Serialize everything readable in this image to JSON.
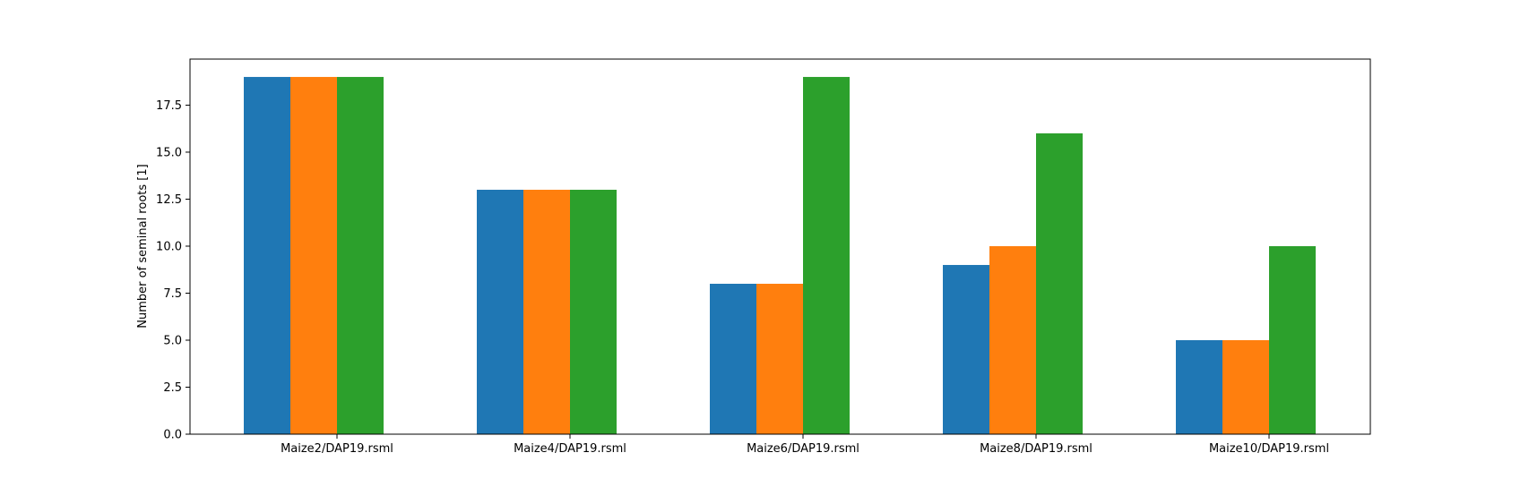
{
  "chart_data": {
    "type": "bar",
    "title": "",
    "xlabel": "",
    "ylabel": "Number of seminal roots [1]",
    "categories": [
      "Maize2/DAP19.rsml",
      "Maize4/DAP19.rsml",
      "Maize6/DAP19.rsml",
      "Maize8/DAP19.rsml",
      "Maize10/DAP19.rsml"
    ],
    "series": [
      {
        "values": [
          19,
          13,
          8,
          9,
          5
        ],
        "color": "#1f77b4"
      },
      {
        "values": [
          19,
          13,
          8,
          10,
          5
        ],
        "color": "#ff7f0e"
      },
      {
        "values": [
          19,
          13,
          19,
          16,
          10
        ],
        "color": "#2ca02c"
      }
    ],
    "yticks": [
      "0.0",
      "2.5",
      "5.0",
      "7.5",
      "10.0",
      "12.5",
      "15.0",
      "17.5"
    ],
    "ylim": [
      0,
      19.95
    ],
    "grid": false,
    "legend": "none"
  }
}
